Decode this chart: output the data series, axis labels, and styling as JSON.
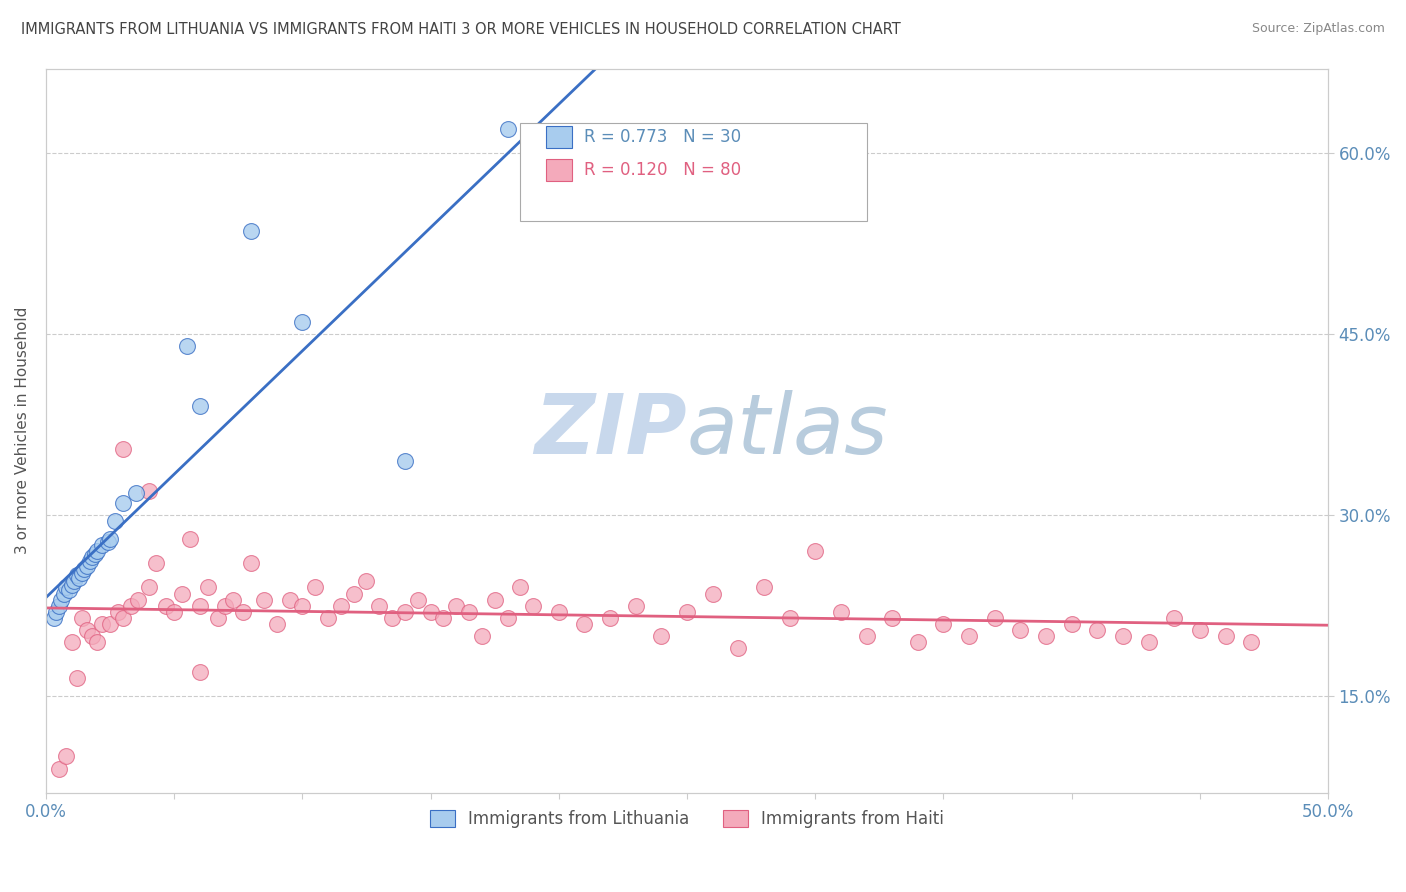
{
  "title": "IMMIGRANTS FROM LITHUANIA VS IMMIGRANTS FROM HAITI 3 OR MORE VEHICLES IN HOUSEHOLD CORRELATION CHART",
  "source": "Source: ZipAtlas.com",
  "ylabel": "3 or more Vehicles in Household",
  "xlim": [
    0.0,
    0.5
  ],
  "ylim": [
    0.07,
    0.67
  ],
  "color_blue": "#A8CCEE",
  "color_pink": "#F4AABB",
  "color_blue_line": "#3A6FC4",
  "color_pink_line": "#E06080",
  "color_watermark": "#DDEAF8",
  "watermark_text": "ZIPatlas",
  "blue_x": [
    0.003,
    0.004,
    0.005,
    0.006,
    0.007,
    0.008,
    0.009,
    0.01,
    0.011,
    0.012,
    0.013,
    0.014,
    0.015,
    0.016,
    0.017,
    0.018,
    0.019,
    0.02,
    0.022,
    0.024,
    0.025,
    0.027,
    0.03,
    0.035,
    0.055,
    0.06,
    0.08,
    0.1,
    0.14,
    0.18
  ],
  "blue_y": [
    0.215,
    0.22,
    0.225,
    0.23,
    0.235,
    0.24,
    0.238,
    0.242,
    0.245,
    0.25,
    0.248,
    0.252,
    0.255,
    0.258,
    0.262,
    0.265,
    0.268,
    0.27,
    0.275,
    0.278,
    0.28,
    0.295,
    0.31,
    0.318,
    0.44,
    0.39,
    0.535,
    0.46,
    0.345,
    0.62
  ],
  "pink_x": [
    0.005,
    0.008,
    0.01,
    0.012,
    0.014,
    0.016,
    0.018,
    0.02,
    0.022,
    0.025,
    0.028,
    0.03,
    0.033,
    0.036,
    0.04,
    0.043,
    0.047,
    0.05,
    0.053,
    0.056,
    0.06,
    0.063,
    0.067,
    0.07,
    0.073,
    0.077,
    0.08,
    0.085,
    0.09,
    0.095,
    0.1,
    0.105,
    0.11,
    0.115,
    0.12,
    0.125,
    0.13,
    0.135,
    0.14,
    0.145,
    0.15,
    0.155,
    0.16,
    0.165,
    0.17,
    0.175,
    0.18,
    0.185,
    0.19,
    0.2,
    0.21,
    0.22,
    0.23,
    0.24,
    0.25,
    0.26,
    0.27,
    0.28,
    0.29,
    0.3,
    0.31,
    0.32,
    0.33,
    0.34,
    0.35,
    0.36,
    0.37,
    0.38,
    0.39,
    0.4,
    0.41,
    0.42,
    0.43,
    0.44,
    0.45,
    0.46,
    0.47,
    0.03,
    0.04,
    0.06
  ],
  "pink_y": [
    0.09,
    0.1,
    0.195,
    0.165,
    0.215,
    0.205,
    0.2,
    0.195,
    0.21,
    0.21,
    0.22,
    0.215,
    0.225,
    0.23,
    0.24,
    0.26,
    0.225,
    0.22,
    0.235,
    0.28,
    0.225,
    0.24,
    0.215,
    0.225,
    0.23,
    0.22,
    0.26,
    0.23,
    0.21,
    0.23,
    0.225,
    0.24,
    0.215,
    0.225,
    0.235,
    0.245,
    0.225,
    0.215,
    0.22,
    0.23,
    0.22,
    0.215,
    0.225,
    0.22,
    0.2,
    0.23,
    0.215,
    0.24,
    0.225,
    0.22,
    0.21,
    0.215,
    0.225,
    0.2,
    0.22,
    0.235,
    0.19,
    0.24,
    0.215,
    0.27,
    0.22,
    0.2,
    0.215,
    0.195,
    0.21,
    0.2,
    0.215,
    0.205,
    0.2,
    0.21,
    0.205,
    0.2,
    0.195,
    0.215,
    0.205,
    0.2,
    0.195,
    0.355,
    0.32,
    0.17
  ]
}
